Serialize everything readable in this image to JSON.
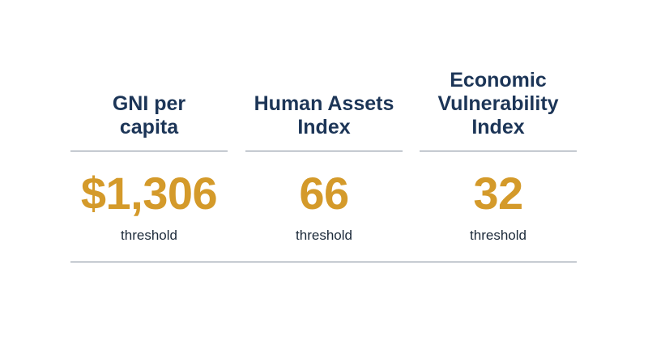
{
  "metrics": [
    {
      "heading": "GNI per\ncapita",
      "value": "$1,306",
      "caption": "threshold"
    },
    {
      "heading": "Human Assets\nIndex",
      "value": "66",
      "caption": "threshold"
    },
    {
      "heading": "Economic\nVulnerability\nIndex",
      "value": "32",
      "caption": "threshold"
    }
  ],
  "colors": {
    "heading": "#1c3557",
    "value": "#d49a2a",
    "rule": "#7f8a99"
  }
}
